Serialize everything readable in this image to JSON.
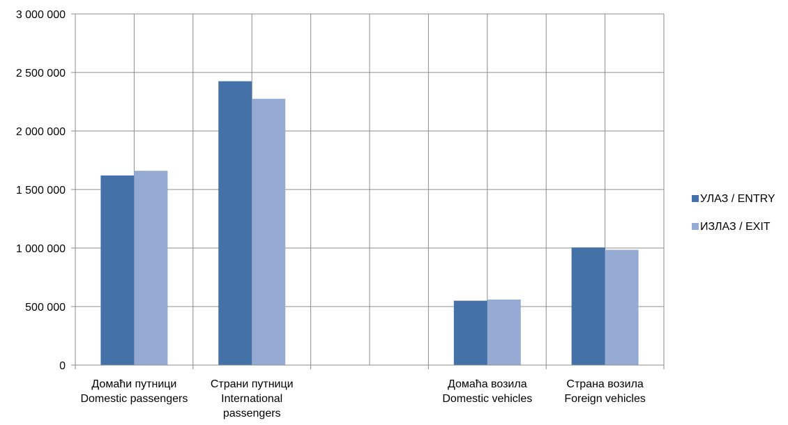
{
  "chart_data": {
    "type": "bar",
    "categories": [
      [
        "Домаћи путници",
        "Domestic passengers"
      ],
      [
        "Страни путници",
        "International",
        "passengers"
      ],
      [],
      [
        "Домаћа возила",
        "Domestic vehicles"
      ],
      [
        "Страна возила",
        "Foreign vehicles"
      ]
    ],
    "series": [
      {
        "name": "УЛАЗ / ENTRY",
        "color": "#4472A8",
        "values": [
          1620000,
          2425000,
          null,
          550000,
          1005000
        ]
      },
      {
        "name": "ИЗЛАЗ / EXIT",
        "color": "#95ABD3",
        "values": [
          1660000,
          2275000,
          null,
          560000,
          985000
        ]
      }
    ],
    "ylim": [
      0,
      3000000
    ],
    "yticks": [
      0,
      500000,
      1000000,
      1500000,
      2000000,
      2500000,
      3000000
    ],
    "ytick_labels": [
      "0",
      "500 000",
      "1 000 000",
      "1 500 000",
      "2 000 000",
      "2 500 000",
      "3 000 000"
    ],
    "grid": true,
    "legend_position": "right",
    "title": "",
    "xlabel": "",
    "ylabel": ""
  }
}
